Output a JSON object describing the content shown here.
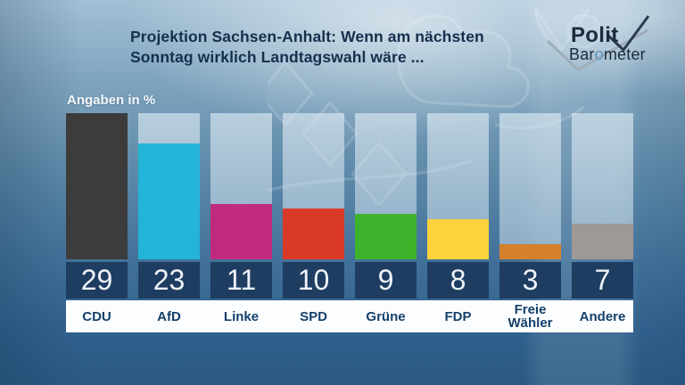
{
  "header": {
    "title_line1": "Projektion Sachsen-Anhalt: Wenn am nächsten",
    "title_line2": "Sonntag wirklich Landtagswahl wäre ...",
    "logo": {
      "line1": "Polit",
      "line2_pre": "Bar",
      "line2_o": "o",
      "line2_post": "meter"
    }
  },
  "chart": {
    "units_label": "Angaben in %"
  },
  "chart_data": {
    "type": "bar",
    "title": "Projektion Sachsen-Anhalt: Wenn am nächsten Sonntag wirklich Landtagswahl wäre ...",
    "units": "Angaben in %",
    "categories": [
      "CDU",
      "AfD",
      "Linke",
      "SPD",
      "Grüne",
      "FDP",
      "Freie Wähler",
      "Andere"
    ],
    "values": [
      29,
      23,
      11,
      10,
      9,
      8,
      3,
      7
    ],
    "colors": [
      "#3c3c3c",
      "#23b4d8",
      "#c02a7e",
      "#d93a27",
      "#3db32b",
      "#fdd23d",
      "#d5802b",
      "#9d9997"
    ],
    "ylim": [
      0,
      29
    ],
    "value_labels_shown": true,
    "grid": false,
    "legend": false,
    "accent_colors": {
      "value_box": "#1e3d61",
      "label_strip": "#fcfdfe",
      "title_text": "#16304d"
    }
  }
}
